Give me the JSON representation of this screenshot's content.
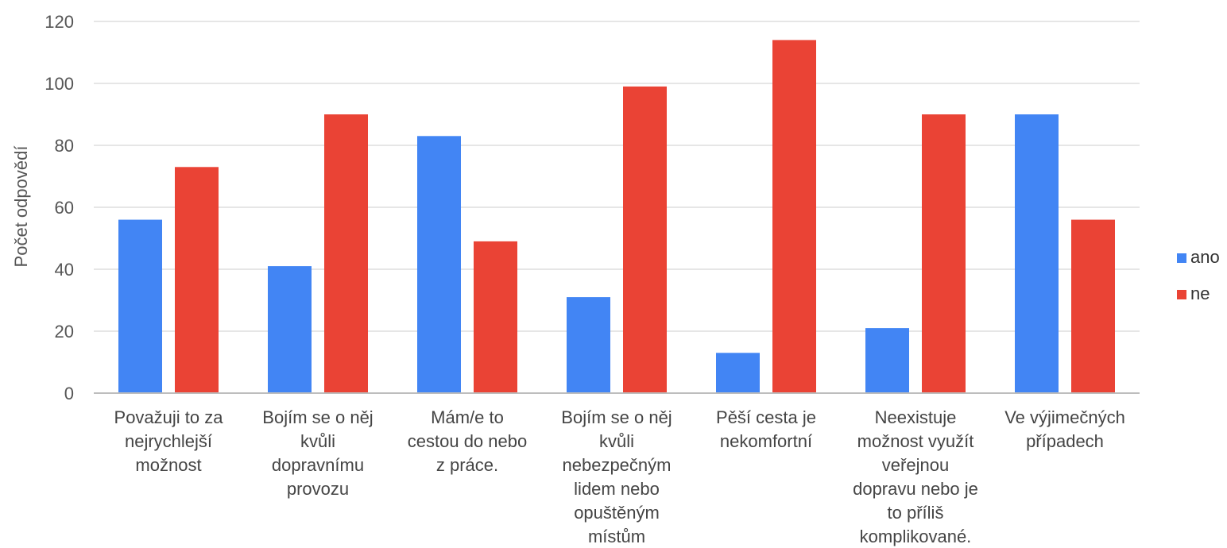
{
  "chart_data": {
    "type": "bar",
    "title": "",
    "xlabel": "",
    "ylabel": "Počet odpovědí",
    "ylim": [
      0,
      120
    ],
    "yticks": [
      0,
      20,
      40,
      60,
      80,
      100,
      120
    ],
    "grid": true,
    "legend_position": "right",
    "categories": [
      [
        "Považuji to za",
        "nejrychlejší",
        "možnost"
      ],
      [
        "Bojím se o něj",
        "kvůli",
        "dopravnímu",
        "provozu"
      ],
      [
        "Mám/e to",
        "cestou do nebo",
        "z práce."
      ],
      [
        "Bojím se o něj",
        "kvůli",
        "nebezpečným",
        "lidem nebo",
        "opuštěným",
        "místům"
      ],
      [
        "Pěší cesta je",
        "nekomfortní"
      ],
      [
        "Neexistuje",
        "možnost využít",
        "veřejnou",
        "dopravu nebo je",
        "to příliš",
        "komplikované."
      ],
      [
        "Ve výjimečných",
        "případech"
      ]
    ],
    "series": [
      {
        "name": "ano",
        "color": "#4285f4",
        "values": [
          56,
          41,
          83,
          31,
          13,
          21,
          90
        ]
      },
      {
        "name": "ne",
        "color": "#ea4335",
        "values": [
          73,
          90,
          49,
          99,
          114,
          90,
          56
        ]
      }
    ]
  }
}
